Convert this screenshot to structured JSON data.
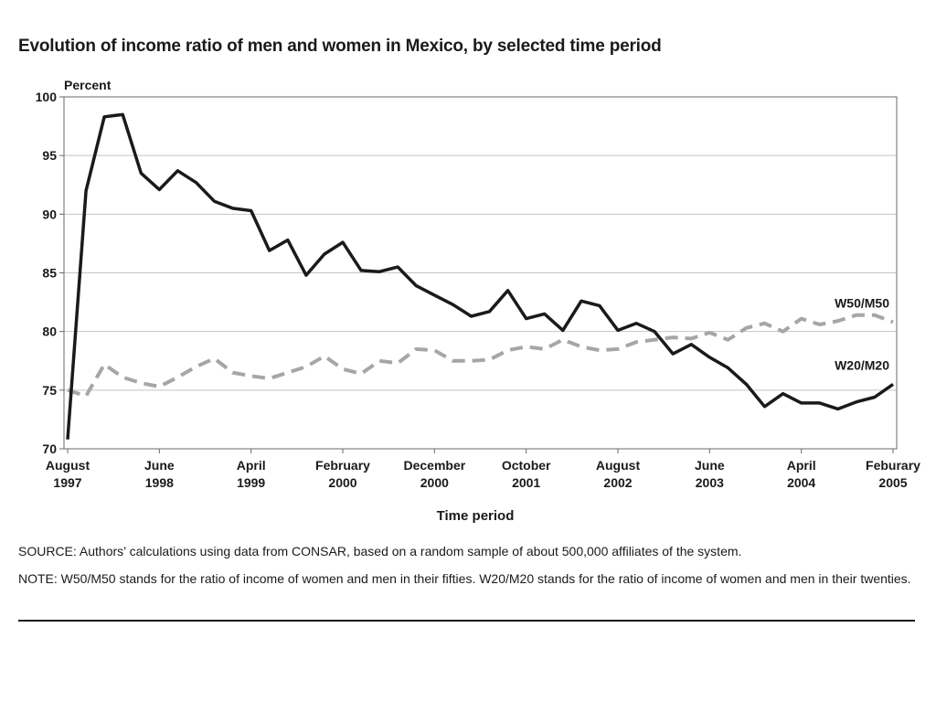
{
  "chart_data": {
    "type": "line",
    "title": "Evolution of income ratio of men and women in Mexico, by selected time period",
    "ylabel": "Percent",
    "xlabel": "Time period",
    "ylim": [
      70,
      100
    ],
    "yticks": [
      70,
      75,
      80,
      85,
      90,
      95,
      100
    ],
    "xlim": [
      "1997-08",
      "2005-02"
    ],
    "xticks": [
      {
        "date": "1997-08",
        "label": [
          "August",
          "1997"
        ]
      },
      {
        "date": "1998-06",
        "label": [
          "June",
          "1998"
        ]
      },
      {
        "date": "1999-04",
        "label": [
          "April",
          "1999"
        ]
      },
      {
        "date": "2000-02",
        "label": [
          "February",
          "2000"
        ]
      },
      {
        "date": "2000-12",
        "label": [
          "December",
          "2000"
        ]
      },
      {
        "date": "2001-10",
        "label": [
          "October",
          "2001"
        ]
      },
      {
        "date": "2002-08",
        "label": [
          "August",
          "2002"
        ]
      },
      {
        "date": "2003-06",
        "label": [
          "June",
          "2003"
        ]
      },
      {
        "date": "2004-04",
        "label": [
          "April",
          "2004"
        ]
      },
      {
        "date": "2005-02",
        "label": [
          "Feburary",
          "2005"
        ]
      }
    ],
    "grid": "horizontal",
    "series": [
      {
        "name": "W20/M20",
        "color": "#1a1a1a",
        "style": "solid",
        "points": [
          [
            "1997-08",
            70.8
          ],
          [
            "1997-10",
            92.0
          ],
          [
            "1997-12",
            98.3
          ],
          [
            "1998-02",
            98.5
          ],
          [
            "1998-04",
            93.5
          ],
          [
            "1998-06",
            92.1
          ],
          [
            "1998-08",
            93.7
          ],
          [
            "1998-10",
            92.7
          ],
          [
            "1998-12",
            91.1
          ],
          [
            "1999-02",
            90.5
          ],
          [
            "1999-04",
            90.3
          ],
          [
            "1999-06",
            86.9
          ],
          [
            "1999-08",
            87.8
          ],
          [
            "1999-10",
            84.8
          ],
          [
            "1999-12",
            86.6
          ],
          [
            "2000-02",
            87.6
          ],
          [
            "2000-04",
            85.2
          ],
          [
            "2000-06",
            85.1
          ],
          [
            "2000-08",
            85.5
          ],
          [
            "2000-10",
            83.9
          ],
          [
            "2000-12",
            83.1
          ],
          [
            "2001-02",
            82.3
          ],
          [
            "2001-04",
            81.3
          ],
          [
            "2001-06",
            81.7
          ],
          [
            "2001-08",
            83.5
          ],
          [
            "2001-10",
            81.1
          ],
          [
            "2001-12",
            81.5
          ],
          [
            "2002-02",
            80.1
          ],
          [
            "2002-04",
            82.6
          ],
          [
            "2002-06",
            82.2
          ],
          [
            "2002-08",
            80.1
          ],
          [
            "2002-10",
            80.7
          ],
          [
            "2002-12",
            80.0
          ],
          [
            "2003-02",
            78.1
          ],
          [
            "2003-04",
            78.9
          ],
          [
            "2003-06",
            77.8
          ],
          [
            "2003-08",
            76.9
          ],
          [
            "2003-10",
            75.5
          ],
          [
            "2003-12",
            73.6
          ],
          [
            "2004-02",
            74.7
          ],
          [
            "2004-04",
            73.9
          ],
          [
            "2004-06",
            73.9
          ],
          [
            "2004-08",
            73.4
          ],
          [
            "2004-10",
            74.0
          ],
          [
            "2004-12",
            74.4
          ],
          [
            "2005-02",
            75.5
          ]
        ]
      },
      {
        "name": "W50/M50",
        "color": "#a6a6a6",
        "style": "dashed",
        "points": [
          [
            "1997-08",
            75.0
          ],
          [
            "1997-10",
            74.5
          ],
          [
            "1997-12",
            77.2
          ],
          [
            "1998-02",
            76.1
          ],
          [
            "1998-04",
            75.6
          ],
          [
            "1998-06",
            75.3
          ],
          [
            "1998-08",
            76.1
          ],
          [
            "1998-10",
            77.0
          ],
          [
            "1998-12",
            77.7
          ],
          [
            "1999-02",
            76.5
          ],
          [
            "1999-04",
            76.2
          ],
          [
            "1999-06",
            76.0
          ],
          [
            "1999-08",
            76.5
          ],
          [
            "1999-10",
            77.0
          ],
          [
            "1999-12",
            77.9
          ],
          [
            "2000-02",
            76.8
          ],
          [
            "2000-04",
            76.4
          ],
          [
            "2000-06",
            77.5
          ],
          [
            "2000-08",
            77.3
          ],
          [
            "2000-10",
            78.5
          ],
          [
            "2000-12",
            78.4
          ],
          [
            "2001-02",
            77.5
          ],
          [
            "2001-04",
            77.5
          ],
          [
            "2001-06",
            77.6
          ],
          [
            "2001-08",
            78.4
          ],
          [
            "2001-10",
            78.7
          ],
          [
            "2001-12",
            78.5
          ],
          [
            "2002-02",
            79.3
          ],
          [
            "2002-04",
            78.7
          ],
          [
            "2002-06",
            78.4
          ],
          [
            "2002-08",
            78.5
          ],
          [
            "2002-10",
            79.1
          ],
          [
            "2002-12",
            79.3
          ],
          [
            "2003-02",
            79.5
          ],
          [
            "2003-04",
            79.4
          ],
          [
            "2003-06",
            79.9
          ],
          [
            "2003-08",
            79.3
          ],
          [
            "2003-10",
            80.3
          ],
          [
            "2003-12",
            80.7
          ],
          [
            "2004-02",
            80.0
          ],
          [
            "2004-04",
            81.1
          ],
          [
            "2004-06",
            80.6
          ],
          [
            "2004-08",
            80.9
          ],
          [
            "2004-10",
            81.4
          ],
          [
            "2004-12",
            81.4
          ],
          [
            "2005-02",
            80.8
          ]
        ]
      }
    ]
  },
  "source_text": "SOURCE: Authors’ calculations using data from CONSAR, based on a random sample of about 500,000 affiliates of the system.",
  "note_text": "NOTE: W50/M50 stands for the ratio of income of women and men in their fifties. W20/M20 stands for the ratio of income of women and men in their twenties."
}
